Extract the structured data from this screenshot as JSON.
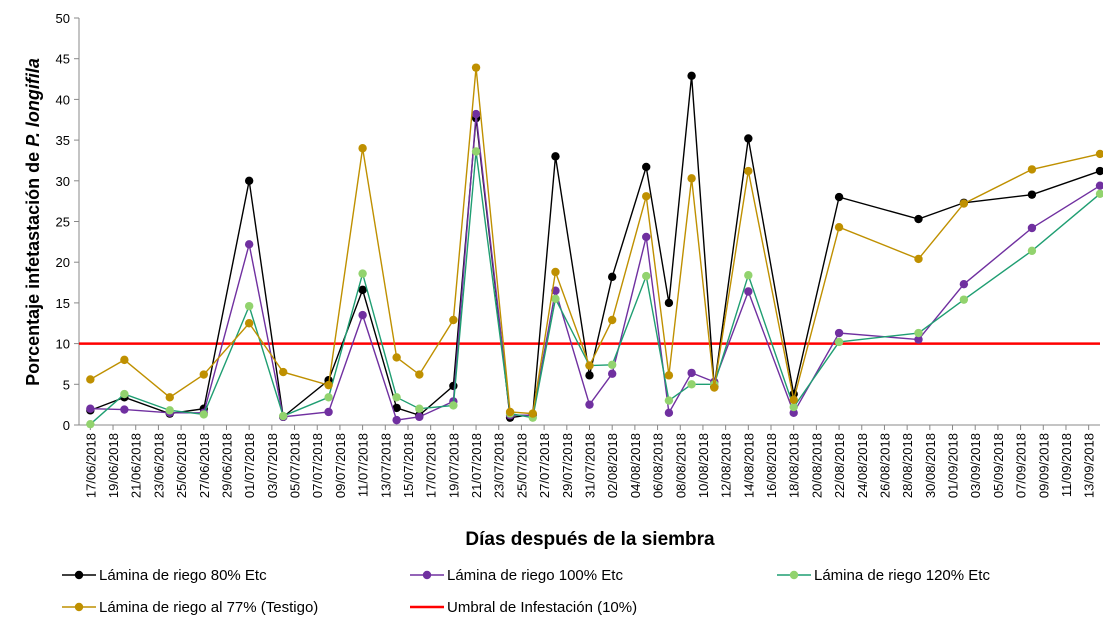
{
  "chart_data": {
    "type": "line",
    "xlabel": "Días después de la siembra",
    "ylabel": "Porcentaje infetastación de",
    "ylabel_species": "P. longifila",
    "x": [
      "17/06/2018",
      "20/06/2018",
      "24/06/2018",
      "27/06/2018",
      "01/07/2018",
      "04/07/2018",
      "08/07/2018",
      "11/07/2018",
      "14/07/2018",
      "16/07/2018",
      "19/07/2018",
      "21/07/2018",
      "24/07/2018",
      "26/07/2018",
      "28/07/2018",
      "31/07/2018",
      "02/08/2018",
      "05/08/2018",
      "07/08/2018",
      "09/08/2018",
      "11/08/2018",
      "14/08/2018",
      "18/08/2018",
      "22/08/2018",
      "29/08/2018",
      "02/09/2018",
      "08/09/2018",
      "14/09/2018"
    ],
    "xlim": [
      "16/06/2018",
      "14/09/2018"
    ],
    "xticks": [
      "17/06/2018",
      "19/06/2018",
      "21/06/2018",
      "23/06/2018",
      "25/06/2018",
      "27/06/2018",
      "29/06/2018",
      "01/07/2018",
      "03/07/2018",
      "05/07/2018",
      "07/07/2018",
      "09/07/2018",
      "11/07/2018",
      "13/07/2018",
      "15/07/2018",
      "17/07/2018",
      "19/07/2018",
      "21/07/2018",
      "23/07/2018",
      "25/07/2018",
      "27/07/2018",
      "29/07/2018",
      "31/07/2018",
      "02/08/2018",
      "04/08/2018",
      "06/08/2018",
      "08/08/2018",
      "10/08/2018",
      "12/08/2018",
      "14/08/2018",
      "16/08/2018",
      "18/08/2018",
      "20/08/2018",
      "22/08/2018",
      "24/08/2018",
      "26/08/2018",
      "28/08/2018",
      "30/08/2018",
      "01/09/2018",
      "03/09/2018",
      "05/09/2018",
      "07/09/2018",
      "09/09/2018",
      "11/09/2018",
      "13/09/2018"
    ],
    "ylim": [
      0,
      50
    ],
    "yticks": [
      0,
      5,
      10,
      15,
      20,
      25,
      30,
      35,
      40,
      45,
      50
    ],
    "series": [
      {
        "name": "Lámina de riego 80% Etc",
        "color": "#000000",
        "marker_color": "#000000",
        "values": [
          1.8,
          3.4,
          1.4,
          2.0,
          30,
          1.0,
          5.5,
          16.6,
          2.1,
          1.2,
          4.8,
          37.7,
          0.9,
          1.3,
          33,
          6.1,
          18.2,
          31.7,
          15,
          42.9,
          4.7,
          35.2,
          3.8,
          28,
          25.3,
          27.3,
          28.3,
          31.2
        ]
      },
      {
        "name": "Lámina de riego 100% Etc",
        "color": "#7030a0",
        "marker_color": "#7030a0",
        "values": [
          2.0,
          1.9,
          1.5,
          1.5,
          22.2,
          1.0,
          1.6,
          13.5,
          0.6,
          1.0,
          2.9,
          38.2,
          1.2,
          1.2,
          16.5,
          2.5,
          6.3,
          23.1,
          1.5,
          6.4,
          5.3,
          16.4,
          1.5,
          11.3,
          10.5,
          17.3,
          24.2,
          29.4
        ]
      },
      {
        "name": "Lámina de riego 120% Etc",
        "color": "#1f9e72",
        "marker_color": "#92d36e",
        "values": [
          0.1,
          3.8,
          1.8,
          1.3,
          14.6,
          1.1,
          3.4,
          18.6,
          3.4,
          2.0,
          2.4,
          33.6,
          1.4,
          0.9,
          15.5,
          7.3,
          7.4,
          18.3,
          3.0,
          5.0,
          5.0,
          18.4,
          2.2,
          10.2,
          11.3,
          15.4,
          21.4,
          28.4
        ]
      },
      {
        "name": "Lámina de riego al 77% (Testigo)",
        "color": "#bf9000",
        "marker_color": "#bf9000",
        "values": [
          5.6,
          8.0,
          3.4,
          6.2,
          12.5,
          6.5,
          4.9,
          34.0,
          8.3,
          6.2,
          12.9,
          43.9,
          1.6,
          1.4,
          18.8,
          7.3,
          12.9,
          28.1,
          6.1,
          30.3,
          4.6,
          31.2,
          3.1,
          24.3,
          20.4,
          27.2,
          31.4,
          33.3
        ]
      }
    ],
    "threshold": {
      "name": "Umbral de Infestación (10%)",
      "value": 10,
      "color": "#ff0000"
    }
  }
}
